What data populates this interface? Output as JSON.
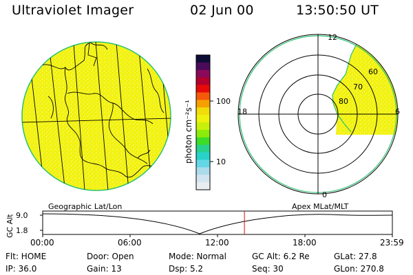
{
  "header": {
    "title": "Ultraviolet Imager",
    "date": "02 Jun 00",
    "time": "13:50:50 UT"
  },
  "colors": {
    "fill_yellow": "#f2f20c",
    "edge_green": "#28c070",
    "speckle_white": "#ffffff"
  },
  "colorbar": {
    "label": "photon cm⁻²s⁻¹",
    "ticks": [
      "100",
      "10"
    ],
    "colors": [
      "#0d0d36",
      "#4b0a5a",
      "#8a0a5a",
      "#b4002c",
      "#e60a0a",
      "#f55a0a",
      "#f5a000",
      "#f2dc0a",
      "#eef20c",
      "#c8f00a",
      "#8ceb0a",
      "#3cdc28",
      "#28d28c",
      "#28d2c8",
      "#64d7e6",
      "#aadcec",
      "#d2e4f0",
      "#e8edf2"
    ]
  },
  "polar": {
    "mlt_labels": [
      "12",
      "18",
      "6",
      "0"
    ],
    "mlat_labels": [
      "60",
      "70",
      "80"
    ]
  },
  "timeline": {
    "left_label": "Geographic Lat/Lon",
    "right_label": "Apex MLat/MLT",
    "axis_label": "GC Alt",
    "y_max": "9.0",
    "y_min": "1.8",
    "x_ticks": [
      "00:00",
      "06:00",
      "12:00",
      "18:00",
      "23:59"
    ],
    "current_time_fraction": 0.5769
  },
  "status": {
    "flt_label": "Flt: HOME",
    "ip_label": "IP: 36.0",
    "door_label": "Door: Open",
    "gain_label": "Gain: 13",
    "mode_label": "Mode: Normal",
    "dsp_label": "Dsp:     5.2",
    "gcalt_label": "GC Alt: 6.2 Re",
    "seq_label": "Seq: 30",
    "glat_label": "GLat:  27.8",
    "glon_label": "GLon: 270.8"
  }
}
